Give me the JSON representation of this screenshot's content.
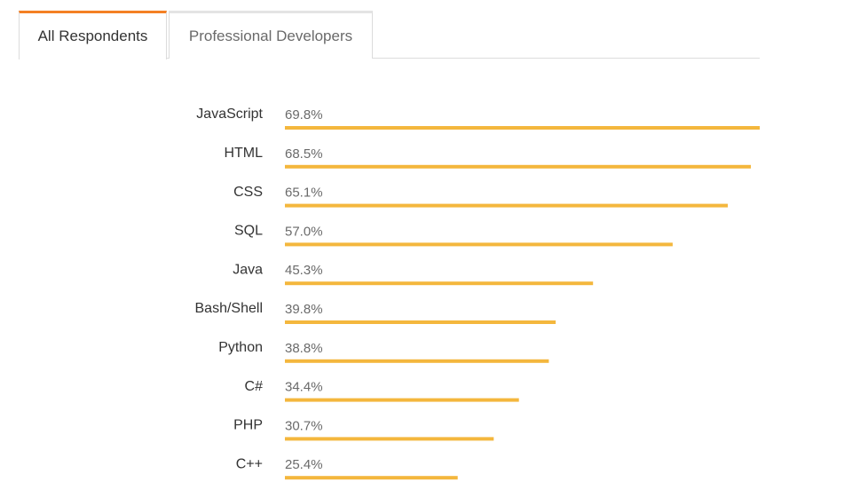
{
  "tabs": [
    {
      "label": "All Respondents",
      "active": true
    },
    {
      "label": "Professional Developers",
      "active": false
    }
  ],
  "colors": {
    "bar": "#f4b73d",
    "active_tab_accent": "#f48024"
  },
  "chart_data": {
    "type": "bar",
    "orientation": "horizontal",
    "categories": [
      "JavaScript",
      "HTML",
      "CSS",
      "SQL",
      "Java",
      "Bash/Shell",
      "Python",
      "C#",
      "PHP",
      "C++"
    ],
    "values": [
      69.8,
      68.5,
      65.1,
      57.0,
      45.3,
      39.8,
      38.8,
      34.4,
      30.7,
      25.4
    ],
    "value_labels": [
      "69.8%",
      "68.5%",
      "65.1%",
      "57.0%",
      "45.3%",
      "39.8%",
      "38.8%",
      "34.4%",
      "30.7%",
      "25.4%"
    ],
    "unit": "%",
    "title": "",
    "xlabel": "",
    "ylabel": "",
    "grid": false,
    "legend": "none"
  }
}
